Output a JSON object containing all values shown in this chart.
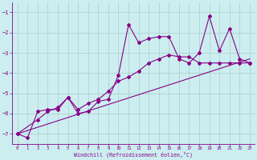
{
  "xlabel": "Windchill (Refroidissement éolien,°C)",
  "bg_color": "#cceef0",
  "line_color": "#880088",
  "grid_color": "#aacccc",
  "xlim": [
    -0.5,
    23.5
  ],
  "ylim": [
    -7.5,
    -0.5
  ],
  "yticks": [
    -7,
    -6,
    -5,
    -4,
    -3,
    -2,
    -1
  ],
  "xticks": [
    0,
    1,
    2,
    3,
    4,
    5,
    6,
    7,
    8,
    9,
    10,
    11,
    12,
    13,
    14,
    15,
    16,
    17,
    18,
    19,
    20,
    21,
    22,
    23
  ],
  "series1_x": [
    0,
    1,
    2,
    3,
    4,
    5,
    6,
    7,
    8,
    9,
    10,
    11,
    12,
    13,
    14,
    15,
    16,
    17,
    18,
    19,
    20,
    21,
    22,
    23
  ],
  "series1_y": [
    -7.0,
    -7.2,
    -5.9,
    -5.8,
    -5.8,
    -5.2,
    -6.0,
    -5.9,
    -5.4,
    -5.3,
    -4.1,
    -1.6,
    -2.5,
    -2.3,
    -2.2,
    -2.2,
    -3.3,
    -3.5,
    -3.0,
    -1.2,
    -2.9,
    -1.8,
    -3.3,
    -3.5
  ],
  "series2_x": [
    0,
    2,
    3,
    4,
    5,
    6,
    7,
    8,
    9,
    10,
    11,
    12,
    13,
    14,
    15,
    16,
    17,
    18,
    19,
    20,
    21,
    22,
    23
  ],
  "series2_y": [
    -7.0,
    -6.3,
    -5.9,
    -5.7,
    -5.2,
    -5.8,
    -5.5,
    -5.3,
    -4.9,
    -4.4,
    -4.2,
    -3.9,
    -3.5,
    -3.3,
    -3.1,
    -3.2,
    -3.2,
    -3.5,
    -3.5,
    -3.5,
    -3.5,
    -3.5,
    -3.5
  ],
  "series3_x": [
    0,
    23
  ],
  "series3_y": [
    -7.0,
    -3.3
  ]
}
